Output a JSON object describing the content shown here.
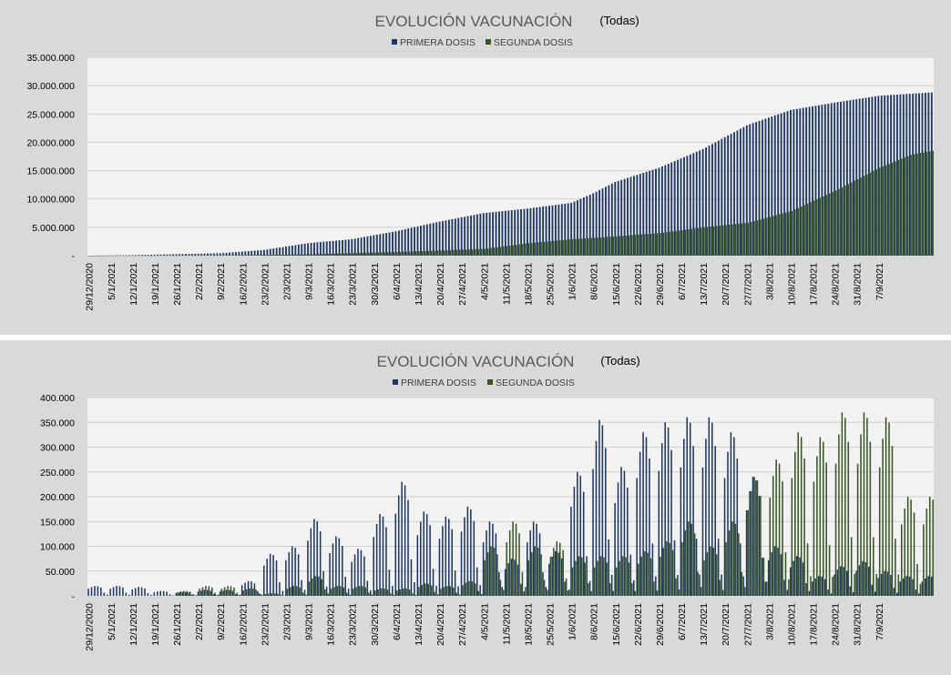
{
  "colors": {
    "primera": "#1f3864",
    "segunda": "#375623",
    "plot_bg": "#f2f2f2",
    "panel_bg": "#d9d9d9",
    "grid": "#d0d0d0"
  },
  "chart_data": [
    {
      "type": "bar",
      "title": "EVOLUCIÓN VACUNACIÓN",
      "subtitle": "(Todas)",
      "series": [
        {
          "name": "PRIMERA DOSIS"
        },
        {
          "name": "SEGUNDA DOSIS"
        }
      ],
      "ylim": [
        0,
        35000000
      ],
      "yticks": [
        "-",
        "5.000.000",
        "10.000.000",
        "15.000.000",
        "20.000.000",
        "25.000.000",
        "30.000.000",
        "35.000.000"
      ],
      "x_start": "29/12/2020",
      "x_end": "12/9/2021",
      "xticks": [
        "29/12/2020",
        "5/1/2021",
        "12/1/2021",
        "19/1/2021",
        "26/1/2021",
        "2/2/2021",
        "9/2/2021",
        "16/2/2021",
        "23/2/2021",
        "2/3/2021",
        "9/3/2021",
        "16/3/2021",
        "23/3/2021",
        "30/3/2021",
        "6/4/2021",
        "13/4/2021",
        "20/4/2021",
        "27/4/2021",
        "4/5/2021",
        "11/5/2021",
        "18/5/2021",
        "25/5/2021",
        "1/6/2021",
        "8/6/2021",
        "15/6/2021",
        "22/6/2021",
        "29/6/2021",
        "6/7/2021",
        "13/7/2021",
        "20/7/2021",
        "27/7/2021",
        "3/8/2021",
        "10/8/2021",
        "17/8/2021",
        "24/8/2021",
        "31/8/2021",
        "7/9/2021"
      ],
      "cumulative_primera": [
        [
          0,
          0
        ],
        [
          14,
          100000
        ],
        [
          42,
          420000
        ],
        [
          56,
          1000000
        ],
        [
          70,
          2200000
        ],
        [
          84,
          2900000
        ],
        [
          98,
          4300000
        ],
        [
          112,
          6000000
        ],
        [
          126,
          7500000
        ],
        [
          140,
          8300000
        ],
        [
          154,
          9300000
        ],
        [
          161,
          11000000
        ],
        [
          168,
          13000000
        ],
        [
          182,
          15500000
        ],
        [
          196,
          18800000
        ],
        [
          210,
          23000000
        ],
        [
          224,
          25700000
        ],
        [
          238,
          27000000
        ],
        [
          252,
          28200000
        ],
        [
          266,
          28700000
        ],
        [
          269,
          28800000
        ]
      ],
      "cumulative_segunda": [
        [
          0,
          0
        ],
        [
          21,
          0
        ],
        [
          42,
          30000
        ],
        [
          56,
          120000
        ],
        [
          70,
          220000
        ],
        [
          84,
          450000
        ],
        [
          98,
          650000
        ],
        [
          112,
          900000
        ],
        [
          126,
          1200000
        ],
        [
          140,
          2200000
        ],
        [
          154,
          2900000
        ],
        [
          168,
          3400000
        ],
        [
          182,
          4000000
        ],
        [
          196,
          5000000
        ],
        [
          210,
          5800000
        ],
        [
          224,
          7900000
        ],
        [
          238,
          11500000
        ],
        [
          252,
          15500000
        ],
        [
          262,
          17800000
        ],
        [
          269,
          18500000
        ]
      ]
    },
    {
      "type": "bar",
      "title": "EVOLUCIÓN VACUNACIÓN",
      "subtitle": "(Todas)",
      "series": [
        {
          "name": "PRIMERA DOSIS"
        },
        {
          "name": "SEGUNDA DOSIS"
        }
      ],
      "ylim": [
        0,
        400000
      ],
      "yticks": [
        "-",
        "50.000",
        "100.000",
        "150.000",
        "200.000",
        "250.000",
        "300.000",
        "350.000",
        "400.000"
      ],
      "x_start": "29/12/2020",
      "x_end": "12/9/2021",
      "xticks": [
        "29/12/2020",
        "5/1/2021",
        "12/1/2021",
        "19/1/2021",
        "26/1/2021",
        "2/2/2021",
        "9/2/2021",
        "16/2/2021",
        "23/2/2021",
        "2/3/2021",
        "9/3/2021",
        "16/3/2021",
        "23/3/2021",
        "30/3/2021",
        "6/4/2021",
        "13/4/2021",
        "20/4/2021",
        "27/4/2021",
        "4/5/2021",
        "11/5/2021",
        "18/5/2021",
        "25/5/2021",
        "1/6/2021",
        "8/6/2021",
        "15/6/2021",
        "22/6/2021",
        "29/6/2021",
        "6/7/2021",
        "13/7/2021",
        "20/7/2021",
        "27/7/2021",
        "3/8/2021",
        "10/8/2021",
        "17/8/2021",
        "24/8/2021",
        "31/8/2021",
        "7/9/2021"
      ],
      "weekly_peaks_primera": [
        20000,
        20000,
        18000,
        10000,
        8000,
        12000,
        12000,
        30000,
        85000,
        100000,
        155000,
        120000,
        95000,
        165000,
        230000,
        170000,
        160000,
        180000,
        150000,
        75000,
        150000,
        90000,
        250000,
        355000,
        260000,
        330000,
        350000,
        360000,
        360000,
        330000,
        240000,
        100000,
        80000,
        40000,
        60000,
        70000,
        50000,
        40000
      ],
      "weekly_peaks_segunda": [
        0,
        0,
        0,
        0,
        10000,
        20000,
        20000,
        15000,
        5000,
        20000,
        40000,
        20000,
        20000,
        15000,
        15000,
        25000,
        20000,
        30000,
        100000,
        150000,
        100000,
        110000,
        80000,
        80000,
        80000,
        90000,
        110000,
        150000,
        100000,
        150000,
        240000,
        275000,
        330000,
        320000,
        370000,
        370000,
        360000,
        200000
      ]
    }
  ]
}
